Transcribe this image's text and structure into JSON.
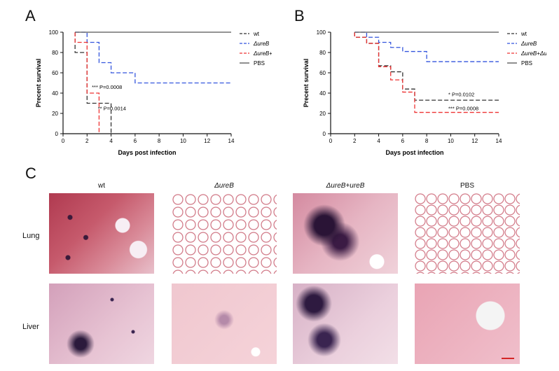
{
  "panels": {
    "a_letter": "A",
    "b_letter": "B",
    "c_letter": "C"
  },
  "chart_data": [
    {
      "type": "line",
      "panel": "A",
      "xlabel": "Days post infection",
      "ylabel": "Precent survival",
      "xlim": [
        0,
        14
      ],
      "ylim": [
        0,
        100
      ],
      "xticks": [
        "0",
        "2",
        "4",
        "6",
        "8",
        "10",
        "12",
        "14"
      ],
      "yticks": [
        "0",
        "20",
        "40",
        "60",
        "80",
        "100"
      ],
      "step": true,
      "series": [
        {
          "name": "wt",
          "color": "#333333",
          "dash": true,
          "x": [
            1,
            1,
            2,
            2,
            4,
            4
          ],
          "y": [
            100,
            80,
            80,
            30,
            30,
            0
          ]
        },
        {
          "name": "ΔureB",
          "color": "#3355dd",
          "dash": true,
          "x": [
            1,
            2,
            2,
            3,
            3,
            4,
            4,
            6,
            6,
            14
          ],
          "y": [
            100,
            100,
            90,
            90,
            70,
            70,
            60,
            60,
            50,
            50
          ]
        },
        {
          "name": "ΔureB+ΔureB",
          "color": "#ee3333",
          "dash": true,
          "x": [
            1,
            1,
            2,
            2,
            3,
            3
          ],
          "y": [
            100,
            90,
            90,
            40,
            40,
            0
          ]
        },
        {
          "name": "PBS",
          "color": "#555555",
          "dash": false,
          "x": [
            1,
            14
          ],
          "y": [
            100,
            100
          ]
        }
      ],
      "annotations": [
        {
          "text": "*** P=0.0008",
          "x": 2.4,
          "y": 44
        },
        {
          "text": "** P=0.0014",
          "x": 2.9,
          "y": 23
        }
      ],
      "legend_position": "top-right"
    },
    {
      "type": "line",
      "panel": "B",
      "xlabel": "Days post infection",
      "ylabel": "Precent survival",
      "xlim": [
        0,
        14
      ],
      "ylim": [
        0,
        100
      ],
      "xticks": [
        "0",
        "2",
        "4",
        "6",
        "8",
        "10",
        "12",
        "14"
      ],
      "yticks": [
        "0",
        "20",
        "40",
        "60",
        "80",
        "100"
      ],
      "step": true,
      "series": [
        {
          "name": "wt",
          "color": "#333333",
          "dash": true,
          "x": [
            2,
            2,
            3,
            3,
            4,
            4,
            5,
            5,
            6,
            6,
            7,
            7,
            14
          ],
          "y": [
            100,
            95,
            95,
            89,
            89,
            67,
            67,
            61,
            61,
            44,
            44,
            33,
            33
          ]
        },
        {
          "name": "ΔureB",
          "color": "#3355dd",
          "dash": true,
          "x": [
            2,
            3,
            3,
            4,
            4,
            5,
            5,
            6,
            6,
            8,
            8,
            14
          ],
          "y": [
            100,
            100,
            95,
            95,
            90,
            90,
            85,
            85,
            81,
            81,
            71,
            71
          ]
        },
        {
          "name": "ΔureB+ΔureB",
          "color": "#ee3333",
          "dash": true,
          "x": [
            2,
            2,
            3,
            3,
            4,
            4,
            5,
            5,
            6,
            6,
            7,
            7,
            14
          ],
          "y": [
            100,
            95,
            95,
            89,
            89,
            66,
            66,
            53,
            53,
            41,
            41,
            21,
            21
          ]
        },
        {
          "name": "PBS",
          "color": "#555555",
          "dash": false,
          "x": [
            2,
            14
          ],
          "y": [
            100,
            100
          ]
        }
      ],
      "annotations": [
        {
          "text": "* P=0.0102",
          "x": 9.8,
          "y": 37
        },
        {
          "text": "*** P=0.0008",
          "x": 9.8,
          "y": 23
        }
      ],
      "legend_position": "top-right"
    }
  ],
  "histology": {
    "columns": [
      "wt",
      "ΔureB",
      "ΔureB+ureB",
      "PBS"
    ],
    "rows": [
      "Lung",
      "Liver"
    ]
  }
}
